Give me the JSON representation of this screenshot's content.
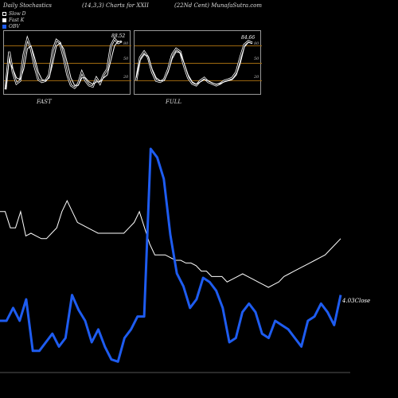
{
  "header": {
    "left": "Daily Stochastics",
    "center": "(14,3,3) Charts for XXII",
    "right": "(22Nd Cent) MunafaSutra.com"
  },
  "legend": [
    {
      "label": "Slow  D",
      "color": "#ffffff",
      "style": "hollow"
    },
    {
      "label": "Fast K",
      "color": "#ffffff",
      "style": "filled"
    },
    {
      "label": "OBV",
      "color": "#1e5cf0",
      "style": "filled"
    }
  ],
  "chart_data": [
    {
      "type": "line",
      "title": "FAST",
      "ylim": [
        0,
        100
      ],
      "levels": [
        "20",
        "50",
        "80"
      ],
      "current_value_label": "88.52",
      "series": [
        {
          "name": "Fast K",
          "values": [
            5,
            70,
            35,
            15,
            20,
            65,
            92,
            75,
            45,
            22,
            18,
            20,
            30,
            72,
            90,
            85,
            60,
            30,
            12,
            8,
            15,
            35,
            20,
            12,
            10,
            25,
            15,
            30,
            40,
            80,
            92,
            85,
            88
          ]
        },
        {
          "name": "Slow  D",
          "values": [
            5,
            55,
            40,
            25,
            22,
            40,
            75,
            80,
            60,
            35,
            22,
            20,
            25,
            50,
            80,
            85,
            75,
            50,
            25,
            12,
            12,
            25,
            25,
            18,
            14,
            18,
            18,
            25,
            30,
            55,
            80,
            88,
            87
          ]
        }
      ]
    },
    {
      "type": "line",
      "title": "FULL",
      "ylim": [
        0,
        100
      ],
      "levels": [
        "20",
        "50",
        "80"
      ],
      "current_value_label": "84.66",
      "series": [
        {
          "name": "Fast K",
          "values": [
            20,
            60,
            70,
            60,
            35,
            20,
            18,
            22,
            40,
            65,
            75,
            70,
            45,
            25,
            15,
            12,
            20,
            25,
            18,
            15,
            12,
            15,
            20,
            22,
            25,
            35,
            60,
            82,
            88,
            85
          ]
        },
        {
          "name": "Slow  D",
          "values": [
            25,
            55,
            65,
            62,
            40,
            25,
            20,
            20,
            35,
            58,
            70,
            68,
            50,
            30,
            18,
            14,
            18,
            22,
            20,
            16,
            14,
            15,
            18,
            20,
            22,
            30,
            50,
            78,
            86,
            84
          ]
        }
      ]
    },
    {
      "type": "line",
      "title": "",
      "ylim": [
        0,
        100
      ],
      "current_value_label": "4.03",
      "suffix_label": "Close",
      "series": [
        {
          "name": "Close",
          "values": [
            38,
            38,
            32,
            32,
            38,
            29,
            30,
            29,
            28,
            28,
            30,
            32,
            38,
            42,
            38,
            34,
            33,
            32,
            31,
            30,
            30,
            30,
            30,
            30,
            30,
            32,
            34,
            38,
            32,
            26,
            22,
            22,
            22,
            21,
            20,
            20,
            19,
            19,
            18,
            16,
            16,
            14,
            14,
            14,
            12,
            13,
            14,
            15,
            14,
            13,
            12,
            11,
            10,
            11,
            12,
            14,
            15,
            16,
            17,
            18,
            19,
            20,
            21,
            22,
            24,
            26,
            28
          ]
        },
        {
          "name": "OBV",
          "values": [
            20,
            20,
            26,
            20,
            30,
            6,
            6,
            10,
            14,
            8,
            12,
            32,
            25,
            20,
            10,
            16,
            8,
            2,
            1,
            12,
            16,
            22,
            22,
            100,
            96,
            86,
            60,
            42,
            36,
            26,
            30,
            40,
            38,
            34,
            26,
            10,
            12,
            24,
            28,
            24,
            14,
            12,
            20,
            18,
            16,
            12,
            8,
            20,
            22,
            28,
            24,
            18,
            32
          ]
        }
      ]
    }
  ]
}
